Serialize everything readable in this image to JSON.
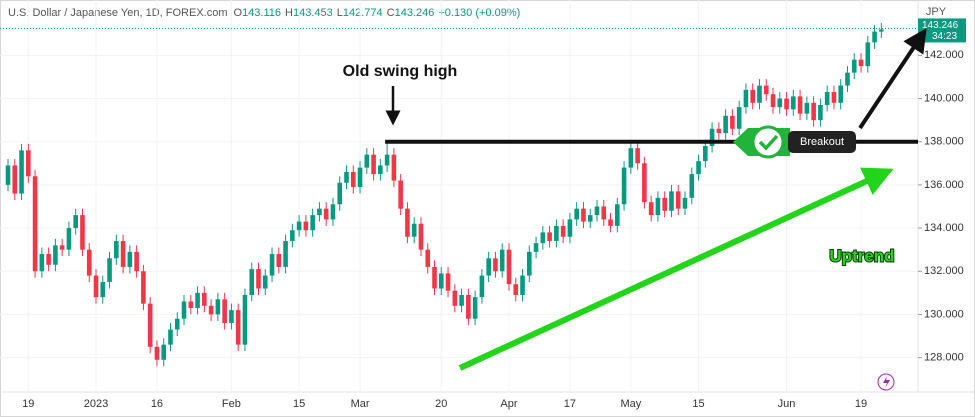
{
  "chart_data": {
    "type": "candlestick",
    "title": "U.S. Dollar / Japanese Yen, 1D, FOREX.com",
    "header": {
      "o_label": "O",
      "o": "143.116",
      "h_label": "H",
      "h": "143.453",
      "l_label": "L",
      "l": "142.774",
      "c_label": "C",
      "c": "143.246",
      "change": "+0.130 (+0.09%)"
    },
    "currency": "JPY",
    "last_price_label": "143.246",
    "countdown": "34:23",
    "last_price": 143.246,
    "categories": [
      null,
      null,
      null,
      "19",
      null,
      null,
      null,
      null,
      null,
      null,
      null,
      null,
      null,
      "2023",
      null,
      null,
      null,
      null,
      null,
      null,
      null,
      null,
      "16",
      null,
      null,
      null,
      null,
      null,
      null,
      null,
      null,
      null,
      null,
      "Feb",
      null,
      null,
      null,
      null,
      null,
      null,
      null,
      null,
      null,
      "15",
      null,
      null,
      null,
      null,
      null,
      null,
      null,
      null,
      "Mar",
      null,
      null,
      null,
      null,
      null,
      null,
      null,
      null,
      null,
      null,
      null,
      "20",
      null,
      null,
      null,
      null,
      null,
      null,
      null,
      null,
      null,
      "Apr",
      null,
      null,
      null,
      null,
      null,
      null,
      null,
      null,
      "17",
      null,
      null,
      null,
      null,
      null,
      null,
      null,
      null,
      "May",
      null,
      null,
      null,
      null,
      null,
      null,
      null,
      null,
      null,
      "15",
      null,
      null,
      null,
      null,
      null,
      null,
      null,
      null,
      null,
      null,
      null,
      null,
      "Jun",
      null,
      null,
      null,
      null,
      null,
      null,
      null,
      null,
      null,
      null,
      "19",
      null,
      null,
      null
    ],
    "open": [
      136.0,
      136.9,
      135.6,
      137.6,
      136.4,
      132.0,
      132.8,
      132.3,
      133.2,
      133.0,
      134.0,
      134.6,
      133.0,
      131.8,
      130.8,
      131.5,
      132.6,
      133.4,
      132.2,
      132.9,
      132.0,
      130.5,
      128.5,
      127.9,
      128.6,
      129.3,
      129.8,
      130.6,
      130.3,
      131.0,
      130.4,
      130.0,
      130.7,
      129.6,
      130.2,
      128.6,
      130.9,
      132.1,
      131.2,
      131.8,
      132.8,
      132.2,
      133.4,
      133.9,
      134.3,
      133.9,
      134.6,
      134.9,
      134.4,
      135.1,
      136.1,
      136.6,
      135.9,
      136.8,
      137.4,
      136.5,
      136.9,
      137.4,
      136.2,
      134.9,
      133.6,
      134.2,
      133.0,
      132.2,
      131.2,
      131.9,
      131.1,
      130.4,
      130.9,
      129.8,
      130.8,
      131.8,
      132.6,
      132.0,
      133.0,
      131.4,
      130.9,
      131.8,
      132.9,
      133.3,
      133.8,
      133.4,
      134.1,
      133.6,
      134.4,
      134.9,
      134.3,
      134.6,
      135.0,
      134.4,
      134.1,
      135.1,
      136.8,
      137.7,
      137.0,
      135.2,
      134.6,
      135.4,
      134.8,
      135.7,
      134.9,
      135.4,
      136.5,
      137.1,
      137.8,
      138.6,
      138.4,
      139.2,
      138.6,
      139.6,
      140.4,
      139.8,
      140.6,
      140.2,
      139.6,
      140.0,
      139.5,
      140.1,
      139.3,
      139.8,
      139.0,
      139.7,
      140.3,
      139.8,
      140.6,
      141.2,
      141.8,
      141.5,
      142.6,
      143.1
    ],
    "high": [
      137.2,
      137.2,
      137.9,
      137.9,
      136.7,
      133.1,
      133.1,
      133.5,
      133.5,
      134.3,
      134.9,
      134.9,
      133.3,
      132.1,
      131.8,
      132.9,
      133.7,
      133.7,
      133.2,
      133.2,
      132.3,
      130.8,
      128.8,
      128.9,
      129.6,
      130.1,
      130.9,
      130.9,
      131.3,
      131.3,
      130.7,
      131.0,
      131.0,
      130.5,
      130.5,
      131.2,
      132.4,
      132.4,
      132.1,
      133.1,
      133.1,
      133.7,
      134.2,
      134.6,
      134.6,
      134.9,
      135.2,
      135.2,
      135.4,
      136.4,
      136.9,
      136.9,
      137.1,
      137.7,
      137.7,
      137.2,
      138.0,
      137.7,
      136.5,
      135.2,
      134.5,
      134.5,
      133.3,
      132.5,
      132.2,
      132.2,
      131.4,
      131.2,
      131.2,
      131.1,
      132.1,
      132.9,
      132.9,
      133.3,
      133.3,
      131.7,
      132.1,
      133.2,
      133.6,
      134.1,
      134.1,
      134.4,
      134.4,
      134.7,
      135.2,
      135.2,
      134.9,
      135.3,
      135.3,
      134.7,
      135.4,
      137.1,
      138.0,
      138.0,
      137.3,
      135.5,
      135.7,
      135.7,
      136.0,
      136.0,
      135.7,
      136.8,
      137.4,
      138.1,
      138.9,
      138.9,
      139.5,
      139.5,
      139.9,
      140.7,
      140.7,
      140.9,
      140.9,
      140.5,
      140.3,
      140.3,
      140.4,
      140.4,
      140.1,
      140.1,
      140.0,
      140.6,
      140.6,
      140.9,
      141.5,
      142.1,
      142.1,
      142.9,
      143.4,
      143.5
    ],
    "low": [
      135.7,
      135.3,
      135.3,
      136.1,
      131.7,
      131.7,
      132.0,
      132.0,
      132.7,
      132.7,
      133.7,
      132.7,
      131.5,
      130.5,
      130.5,
      131.2,
      132.3,
      131.9,
      131.9,
      131.7,
      130.2,
      128.2,
      127.6,
      127.6,
      128.3,
      129.0,
      129.5,
      130.0,
      130.0,
      130.1,
      129.7,
      129.7,
      129.3,
      129.3,
      128.3,
      128.3,
      130.6,
      130.9,
      130.9,
      131.5,
      131.9,
      131.9,
      133.1,
      133.6,
      133.6,
      133.6,
      134.3,
      134.1,
      134.1,
      134.8,
      135.8,
      135.6,
      135.6,
      136.5,
      136.2,
      136.2,
      136.6,
      135.9,
      134.6,
      133.3,
      133.3,
      132.7,
      131.9,
      130.9,
      130.9,
      130.8,
      130.1,
      130.1,
      129.5,
      129.5,
      130.5,
      131.5,
      131.7,
      131.7,
      131.1,
      130.6,
      130.6,
      131.5,
      132.6,
      133.0,
      133.1,
      133.1,
      133.3,
      133.3,
      134.1,
      134.0,
      134.0,
      134.3,
      134.1,
      133.8,
      133.8,
      134.8,
      136.5,
      136.7,
      134.9,
      134.3,
      134.3,
      134.5,
      134.5,
      134.6,
      134.6,
      135.1,
      136.2,
      136.8,
      137.5,
      138.1,
      138.1,
      138.3,
      138.3,
      139.3,
      139.5,
      139.5,
      139.9,
      139.3,
      139.3,
      139.2,
      139.2,
      139.0,
      139.0,
      138.7,
      138.7,
      139.4,
      139.5,
      139.5,
      140.3,
      140.9,
      141.2,
      141.2,
      142.3,
      142.8
    ],
    "close": [
      136.9,
      135.6,
      137.6,
      136.4,
      132.0,
      132.8,
      132.3,
      133.2,
      133.0,
      134.0,
      134.6,
      133.0,
      131.8,
      130.8,
      131.5,
      132.6,
      133.4,
      132.2,
      132.9,
      132.0,
      130.5,
      128.5,
      127.9,
      128.6,
      129.3,
      129.8,
      130.6,
      130.3,
      131.0,
      130.4,
      130.0,
      130.7,
      129.6,
      130.2,
      128.6,
      130.9,
      132.1,
      131.2,
      131.8,
      132.8,
      132.2,
      133.4,
      133.9,
      134.3,
      133.9,
      134.6,
      134.9,
      134.4,
      135.1,
      136.1,
      136.6,
      135.9,
      136.8,
      137.4,
      136.5,
      136.9,
      137.4,
      136.2,
      134.9,
      133.6,
      134.2,
      133.0,
      132.2,
      131.2,
      131.9,
      131.1,
      130.4,
      130.9,
      129.8,
      130.8,
      131.8,
      132.6,
      132.0,
      133.0,
      131.4,
      130.9,
      131.8,
      132.9,
      133.3,
      133.8,
      133.4,
      134.1,
      133.6,
      134.4,
      134.9,
      134.3,
      134.6,
      135.0,
      134.4,
      134.1,
      135.1,
      136.8,
      137.7,
      137.0,
      135.2,
      134.6,
      135.4,
      134.8,
      135.7,
      134.9,
      135.4,
      136.5,
      137.1,
      137.8,
      138.6,
      138.4,
      139.2,
      138.6,
      139.6,
      140.4,
      139.8,
      140.6,
      140.2,
      139.6,
      140.0,
      139.5,
      140.1,
      139.3,
      139.8,
      139.0,
      139.7,
      140.3,
      139.8,
      140.6,
      141.2,
      141.8,
      141.5,
      142.6,
      143.1,
      143.2
    ],
    "up_color": "#089981",
    "down_color": "#f23645",
    "ylim": [
      126.5,
      144.1
    ],
    "yticks": [
      {
        "value": 128,
        "label": "128.000"
      },
      {
        "value": 130,
        "label": "130.000"
      },
      {
        "value": 132,
        "label": "132.000"
      },
      {
        "value": 134,
        "label": "134.000"
      },
      {
        "value": 136,
        "label": "136.000"
      },
      {
        "value": 138,
        "label": "138.000"
      },
      {
        "value": 140,
        "label": "140.000"
      },
      {
        "value": 142,
        "label": "142.000"
      }
    ],
    "resistance_level": 138,
    "annotations": {
      "swing_high": "Old swing high",
      "breakout": "Breakout",
      "trend": "Uptrend"
    }
  }
}
